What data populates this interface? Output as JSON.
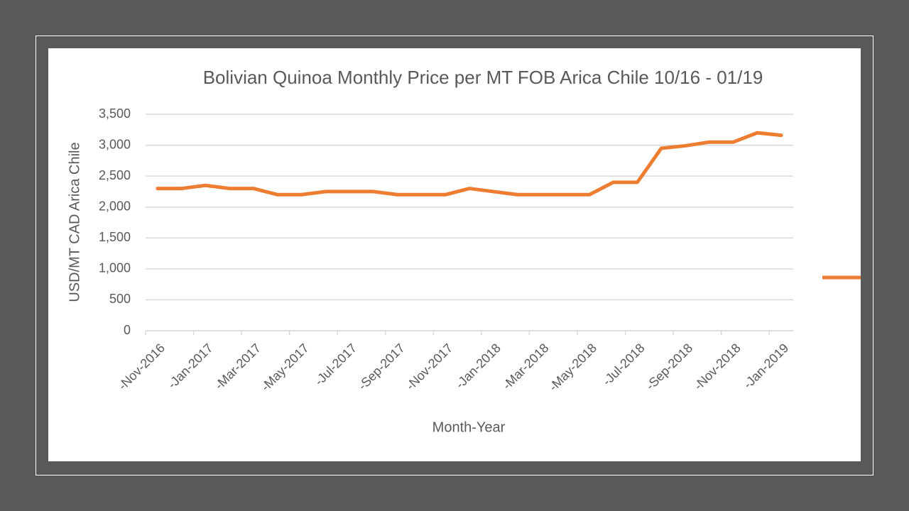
{
  "chart_data": {
    "type": "line",
    "title": "Bolivian Quinoa  Monthly Price per MT FOB Arica Chile 10/16 - 01/19",
    "y_label": "USD/MT CAD Arica Chile",
    "x_label": "Month-Year",
    "categories": [
      "-Nov-2016",
      null,
      "-Jan-2017",
      null,
      "-Mar-2017",
      null,
      "-May-2017",
      null,
      "-Jul-2017",
      null,
      "-Sep-2017",
      null,
      "-Nov-2017",
      null,
      "-Jan-2018",
      null,
      "-Mar-2018",
      null,
      "-May-2018",
      null,
      "-Jul-2018",
      null,
      "-Sep-2018",
      null,
      "-Nov-2018",
      null,
      "-Jan-2019"
    ],
    "series": [
      {
        "color": "#ed7d31",
        "values": [
          2300,
          2300,
          2350,
          2300,
          2300,
          2200,
          2200,
          2250,
          2250,
          2250,
          2200,
          2200,
          2200,
          2300,
          2250,
          2200,
          2200,
          2200,
          2200,
          2400,
          2400,
          2950,
          2990,
          3050,
          3050,
          3200,
          3160
        ]
      }
    ],
    "ylim": [
      0,
      3500
    ],
    "yticks": [
      0,
      500,
      {
        "value": 1000,
        "label": "1,000"
      },
      {
        "value": 1500,
        "label": "1,500"
      },
      {
        "value": 2000,
        "label": "2,000"
      },
      {
        "value": 2500,
        "label": "2,500"
      },
      {
        "value": 3000,
        "label": "3,000"
      },
      {
        "value": 3500,
        "label": "3,500"
      }
    ],
    "grid": true
  }
}
